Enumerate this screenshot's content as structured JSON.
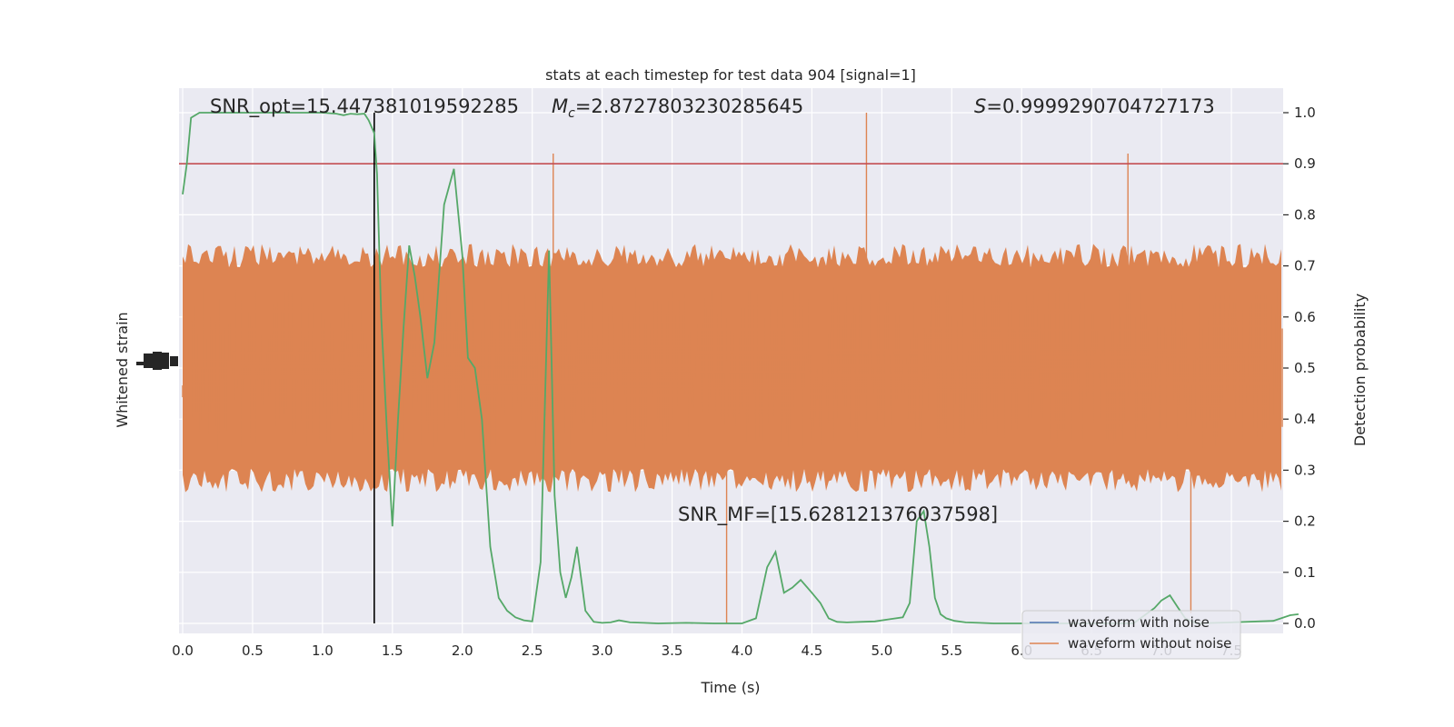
{
  "chart_data": {
    "type": "line",
    "title": "stats at each timestep for test data 904 [signal=1]",
    "xlabel": "Time (s)",
    "ylabel_left": "Whitened strain",
    "ylabel_right": "Detection probability",
    "xlim": [
      0.0,
      8.0
    ],
    "ylim_right": [
      -0.05,
      1.05
    ],
    "x_ticks": [
      "0.0",
      "0.5",
      "1.0",
      "1.5",
      "2.0",
      "2.5",
      "3.0",
      "3.5",
      "4.0",
      "4.5",
      "5.0",
      "5.5",
      "6.0",
      "6.5",
      "7.0",
      "7.5"
    ],
    "y_ticks_right": [
      "0.0",
      "0.1",
      "0.2",
      "0.3",
      "0.4",
      "0.5",
      "0.6",
      "0.7",
      "0.8",
      "0.9",
      "1.0"
    ],
    "grid": true,
    "legend_position": "lower-right",
    "annotations": {
      "snr_opt": "SNR_opt=15.447381019592285",
      "mc": "=2.8727803230285645",
      "s": "=0.9999290704727173",
      "snr_mf": "SNR_MF=[15.628121376037598]"
    },
    "threshold": {
      "y": 0.9,
      "color": "#c44e52"
    },
    "marker_time": 1.37,
    "series": [
      {
        "name": "waveform with noise",
        "color": "#4c72b0"
      },
      {
        "name": "waveform without noise",
        "color": "#dd8452"
      },
      {
        "color": "#55a868",
        "x": [
          0.0,
          0.03,
          0.06,
          0.12,
          0.2,
          0.3,
          0.4,
          0.5,
          0.6,
          0.7,
          0.8,
          0.9,
          1.0,
          1.1,
          1.15,
          1.2,
          1.25,
          1.3,
          1.33,
          1.37,
          1.39,
          1.42,
          1.46,
          1.5,
          1.54,
          1.58,
          1.62,
          1.66,
          1.7,
          1.75,
          1.8,
          1.87,
          1.94,
          2.0,
          2.04,
          2.09,
          2.14,
          2.2,
          2.26,
          2.32,
          2.38,
          2.44,
          2.5,
          2.56,
          2.62,
          2.66,
          2.7,
          2.74,
          2.78,
          2.82,
          2.88,
          2.94,
          3.0,
          3.06,
          3.12,
          3.2,
          3.3,
          3.4,
          3.6,
          3.8,
          4.0,
          4.1,
          4.18,
          4.24,
          4.3,
          4.36,
          4.42,
          4.5,
          4.56,
          4.62,
          4.68,
          4.75,
          4.85,
          4.95,
          5.05,
          5.15,
          5.2,
          5.25,
          5.3,
          5.34,
          5.38,
          5.42,
          5.46,
          5.52,
          5.6,
          5.7,
          5.8,
          5.95,
          6.2,
          6.5,
          6.8,
          6.95,
          7.0,
          7.06,
          7.12,
          7.17,
          7.25,
          7.5,
          7.8,
          7.92,
          7.98
        ],
        "values": [
          0.84,
          0.9,
          0.99,
          1.0,
          1.0,
          1.0,
          1.0,
          1.0,
          1.0,
          1.0,
          1.0,
          1.0,
          1.0,
          0.998,
          0.995,
          0.998,
          0.997,
          0.998,
          0.985,
          0.96,
          0.88,
          0.6,
          0.38,
          0.19,
          0.4,
          0.58,
          0.74,
          0.68,
          0.6,
          0.48,
          0.55,
          0.82,
          0.89,
          0.72,
          0.52,
          0.5,
          0.4,
          0.15,
          0.05,
          0.025,
          0.012,
          0.006,
          0.004,
          0.12,
          0.73,
          0.25,
          0.1,
          0.05,
          0.09,
          0.15,
          0.025,
          0.003,
          0.001,
          0.002,
          0.006,
          0.002,
          0.001,
          0.0,
          0.001,
          0.0,
          0.0,
          0.01,
          0.11,
          0.14,
          0.06,
          0.07,
          0.085,
          0.06,
          0.04,
          0.01,
          0.003,
          0.002,
          0.003,
          0.004,
          0.008,
          0.012,
          0.04,
          0.2,
          0.22,
          0.15,
          0.05,
          0.018,
          0.01,
          0.005,
          0.002,
          0.001,
          0.0,
          0.0,
          0.0,
          0.0,
          0.0,
          0.03,
          0.045,
          0.055,
          0.03,
          0.01,
          0.0,
          0.002,
          0.005,
          0.016,
          0.018
        ]
      }
    ]
  }
}
